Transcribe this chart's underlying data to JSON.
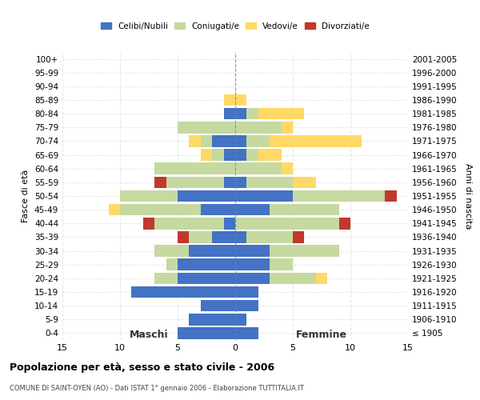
{
  "age_groups": [
    "100+",
    "95-99",
    "90-94",
    "85-89",
    "80-84",
    "75-79",
    "70-74",
    "65-69",
    "60-64",
    "55-59",
    "50-54",
    "45-49",
    "40-44",
    "35-39",
    "30-34",
    "25-29",
    "20-24",
    "15-19",
    "10-14",
    "5-9",
    "0-4"
  ],
  "birth_years": [
    "≤ 1905",
    "1906-1910",
    "1911-1915",
    "1916-1920",
    "1921-1925",
    "1926-1930",
    "1931-1935",
    "1936-1940",
    "1941-1945",
    "1946-1950",
    "1951-1955",
    "1956-1960",
    "1961-1965",
    "1966-1970",
    "1971-1975",
    "1976-1980",
    "1981-1985",
    "1986-1990",
    "1991-1995",
    "1996-2000",
    "2001-2005"
  ],
  "maschi": {
    "celibi": [
      0,
      0,
      0,
      0,
      1,
      0,
      2,
      1,
      0,
      1,
      5,
      3,
      1,
      2,
      4,
      5,
      5,
      9,
      3,
      4,
      5
    ],
    "coniugati": [
      0,
      0,
      0,
      0,
      0,
      5,
      1,
      1,
      7,
      5,
      5,
      7,
      6,
      2,
      3,
      1,
      2,
      0,
      0,
      0,
      0
    ],
    "vedovi": [
      0,
      0,
      0,
      1,
      0,
      0,
      1,
      1,
      0,
      0,
      0,
      1,
      0,
      0,
      0,
      0,
      0,
      0,
      0,
      0,
      0
    ],
    "divorziati": [
      0,
      0,
      0,
      0,
      0,
      0,
      0,
      0,
      0,
      1,
      0,
      0,
      1,
      1,
      0,
      0,
      0,
      0,
      0,
      0,
      0
    ]
  },
  "femmine": {
    "nubili": [
      0,
      0,
      0,
      0,
      1,
      0,
      1,
      1,
      0,
      1,
      5,
      3,
      0,
      1,
      3,
      3,
      3,
      2,
      2,
      1,
      2
    ],
    "coniugate": [
      0,
      0,
      0,
      0,
      1,
      4,
      2,
      1,
      4,
      4,
      8,
      6,
      9,
      4,
      6,
      2,
      4,
      0,
      0,
      0,
      0
    ],
    "vedove": [
      0,
      0,
      0,
      1,
      4,
      1,
      8,
      2,
      1,
      2,
      0,
      0,
      0,
      0,
      0,
      0,
      1,
      0,
      0,
      0,
      0
    ],
    "divorziate": [
      0,
      0,
      0,
      0,
      0,
      0,
      0,
      0,
      0,
      0,
      1,
      0,
      1,
      1,
      0,
      0,
      0,
      0,
      0,
      0,
      0
    ]
  },
  "colors": {
    "celibi_nubili": "#4472c4",
    "coniugati": "#c5d9a0",
    "vedovi": "#ffd966",
    "divorziati": "#c0392b"
  },
  "xlim": 15,
  "title": "Popolazione per età, sesso e stato civile - 2006",
  "subtitle": "COMUNE DI SAINT-OYEN (AO) - Dati ISTAT 1° gennaio 2006 - Elaborazione TUTTITALIA.IT",
  "ylabel_left": "Fasce di età",
  "ylabel_right": "Anni di nascita",
  "xlabel_maschi": "Maschi",
  "xlabel_femmine": "Femmine"
}
